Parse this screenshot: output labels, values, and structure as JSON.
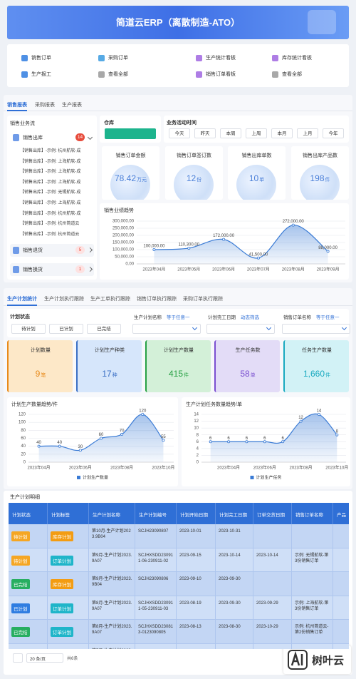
{
  "header": {
    "title": "简道云ERP（离散制造-ATO）"
  },
  "quick_links": [
    "销售订单",
    "采购订单",
    "生产统计看板",
    "库存统计看板",
    "生产报工",
    "查看全部",
    "销售订单看板",
    "查看全部"
  ],
  "sales_panel": {
    "tabs": [
      "销售报表",
      "采购报表",
      "生产报表"
    ],
    "flow_title": "销售业务流",
    "flow": [
      {
        "label": "销售出库",
        "badge": 14,
        "items": [
          "【销售出库】-示例: 杭州航软-成",
          "【销售出库】-示例: 上海航软-成",
          "【销售出库】-示例: 上海航软-成",
          "【销售出库】-示例: 上海航软-成",
          "【销售出库】-示例: 无锡航软-成",
          "【销售出库】-示例: 上海航软-成",
          "【销售出库】-示例: 杭州航软-成",
          "【销售出库】-示例: 杭州简道云",
          "【销售出库】-示例: 杭州简道云"
        ]
      },
      {
        "label": "销售退货",
        "badge": 5
      },
      {
        "label": "销售换货",
        "badge": 1
      }
    ],
    "warehouse_label": "仓库",
    "period_label": "业务活动时间",
    "periods": [
      "今天",
      "昨天",
      "本周",
      "上周",
      "本月",
      "上月",
      "今年"
    ],
    "kpis": [
      {
        "title": "销售订单金额",
        "value": 78.42,
        "unit": "万元"
      },
      {
        "title": "销售订单签订数",
        "value": 12,
        "unit": "份"
      },
      {
        "title": "销售出库单数",
        "value": 10,
        "unit": "单"
      },
      {
        "title": "销售出库产品数",
        "value": 198,
        "unit": "件"
      }
    ],
    "trend": {
      "type": "line",
      "title": "销售业绩趋势",
      "color": "#3a7bd5",
      "categories": [
        "2023年04月",
        "2023年05月",
        "2023年06月",
        "2023年07月",
        "2023年08月",
        "2023年09月"
      ],
      "values": [
        100000,
        110300,
        172000,
        41500,
        272000,
        88000
      ],
      "value_labels": [
        "100,000.00",
        "110,300.00",
        "172,000.00",
        "41,500.00",
        "272,000.00",
        "88,000.00"
      ],
      "ylim": [
        0,
        300000
      ],
      "yticks": [
        {
          "value": 0,
          "label": "0.00"
        },
        {
          "value": 50000,
          "label": "50,000.00"
        },
        {
          "value": 100000,
          "label": "100,000.00"
        },
        {
          "value": 150000,
          "label": "150,000.00"
        },
        {
          "value": 200000,
          "label": "200,000.00"
        },
        {
          "value": 250000,
          "label": "250,000.00"
        },
        {
          "value": 300000,
          "label": "300,000.00"
        }
      ],
      "grid": true
    }
  },
  "production_panel": {
    "tabs": [
      "生产计划统计",
      "生产计划执行跟踪",
      "生产工单执行跟踪",
      "销售订单执行跟踪",
      "采购订单执行跟踪"
    ],
    "status_label": "计划状态",
    "status_options": [
      "待计划",
      "已计划",
      "已完结"
    ],
    "filters": [
      {
        "label": "生产计划名称",
        "op": "等于任意一"
      },
      {
        "label": "计划完工日期",
        "op": "动态筛选"
      },
      {
        "label": "销售订单名称",
        "op": "等于任意一"
      }
    ],
    "kpis": [
      {
        "title": "计划数量",
        "value": 9,
        "unit": "笔"
      },
      {
        "title": "计划生产种类",
        "value": 17,
        "unit": "种"
      },
      {
        "title": "计划生产数量",
        "value": 415,
        "unit": "件"
      },
      {
        "title": "生产任务数",
        "value": 58,
        "unit": "单"
      },
      {
        "title": "任务生产数量",
        "value": 1660,
        "value_label": "1,660",
        "unit": "件"
      }
    ],
    "charts": [
      {
        "type": "line",
        "title": "计划生产数量趋势/件",
        "categories": [
          "2023年04月",
          null,
          "2023年06月",
          null,
          "2023年08月",
          null,
          "2023年10月"
        ],
        "series": [
          {
            "name": "计划生产数量",
            "color": "#3a7bd5",
            "values": [
              40,
              40,
              30,
              60,
              70,
              120,
              55
            ]
          }
        ],
        "ylim": [
          0,
          120
        ],
        "yticks": [
          0,
          20,
          40,
          60,
          80,
          100,
          120
        ],
        "grid": true
      },
      {
        "type": "line",
        "title": "生产计划任务数量趋势/单",
        "categories": [
          null,
          "2023年04月",
          null,
          "2023年06月",
          null,
          "2023年08月",
          null,
          "2023年10月"
        ],
        "series": [
          {
            "name": "计划生产任务",
            "color": "#3a7bd5",
            "values": [
              6,
              6,
              6,
              6,
              6,
              12,
              14,
              8
            ]
          }
        ],
        "ylim": [
          0,
          14
        ],
        "yticks": [
          0,
          2,
          4,
          6,
          8,
          10,
          12,
          14
        ],
        "grid": true
      }
    ]
  },
  "plan_table": {
    "title": "生产计划明细",
    "columns": [
      "计划状态",
      "计划标签",
      "生产计划名称",
      "生产计划编号",
      "计划开始日期",
      "计划完工日期",
      "订单交货日期",
      "销售订单名称",
      "产品"
    ],
    "rows": [
      [
        "待计划",
        "库存计划",
        "第10月-生产计划2023.9B04",
        "SCJH23090807",
        "2023-10-01",
        "2023-10-31",
        null,
        null,
        null
      ],
      [
        "待计划",
        "订单计划",
        "第9月-生产计划2023.9A07",
        "SCJHXSDD230911-06-230911-02",
        "2023-09-15",
        "2023-10-14",
        "2023-10-14",
        "示例: 无锡航软-第3份销售订单",
        null
      ],
      [
        "已完结",
        "库存计划",
        "第9月-生产计划2023.9B04",
        "SCJH23090806",
        "2023-09-10",
        "2023-09-30",
        null,
        null,
        null
      ],
      [
        "已计划",
        "订单计划",
        "第8月-生产计划2023.9A07",
        "SCJHXSDD230911-05-230911-03",
        "2023-08-19",
        "2023-09-30",
        "2023-09-29",
        "示例: 上海航软-第3份销售订单",
        null
      ],
      [
        "已完结",
        "订单计划",
        "第8月-生产计划2023.9A07",
        "SCJHXSDD230813-0123090805",
        "2023-08-13",
        "2023-08-30",
        "2023-10-29",
        "示例: 杭州简道云-第2份销售订单",
        null
      ],
      [
        "已完结",
        "库存计划",
        "第7月-生产计划2023.9B04",
        "SCJH23090804",
        "2023-07-01",
        "2023-07-30",
        null,
        null,
        null
      ]
    ],
    "page_size": "20 条/页",
    "total": "共6条"
  },
  "watermark": "树叶云"
}
